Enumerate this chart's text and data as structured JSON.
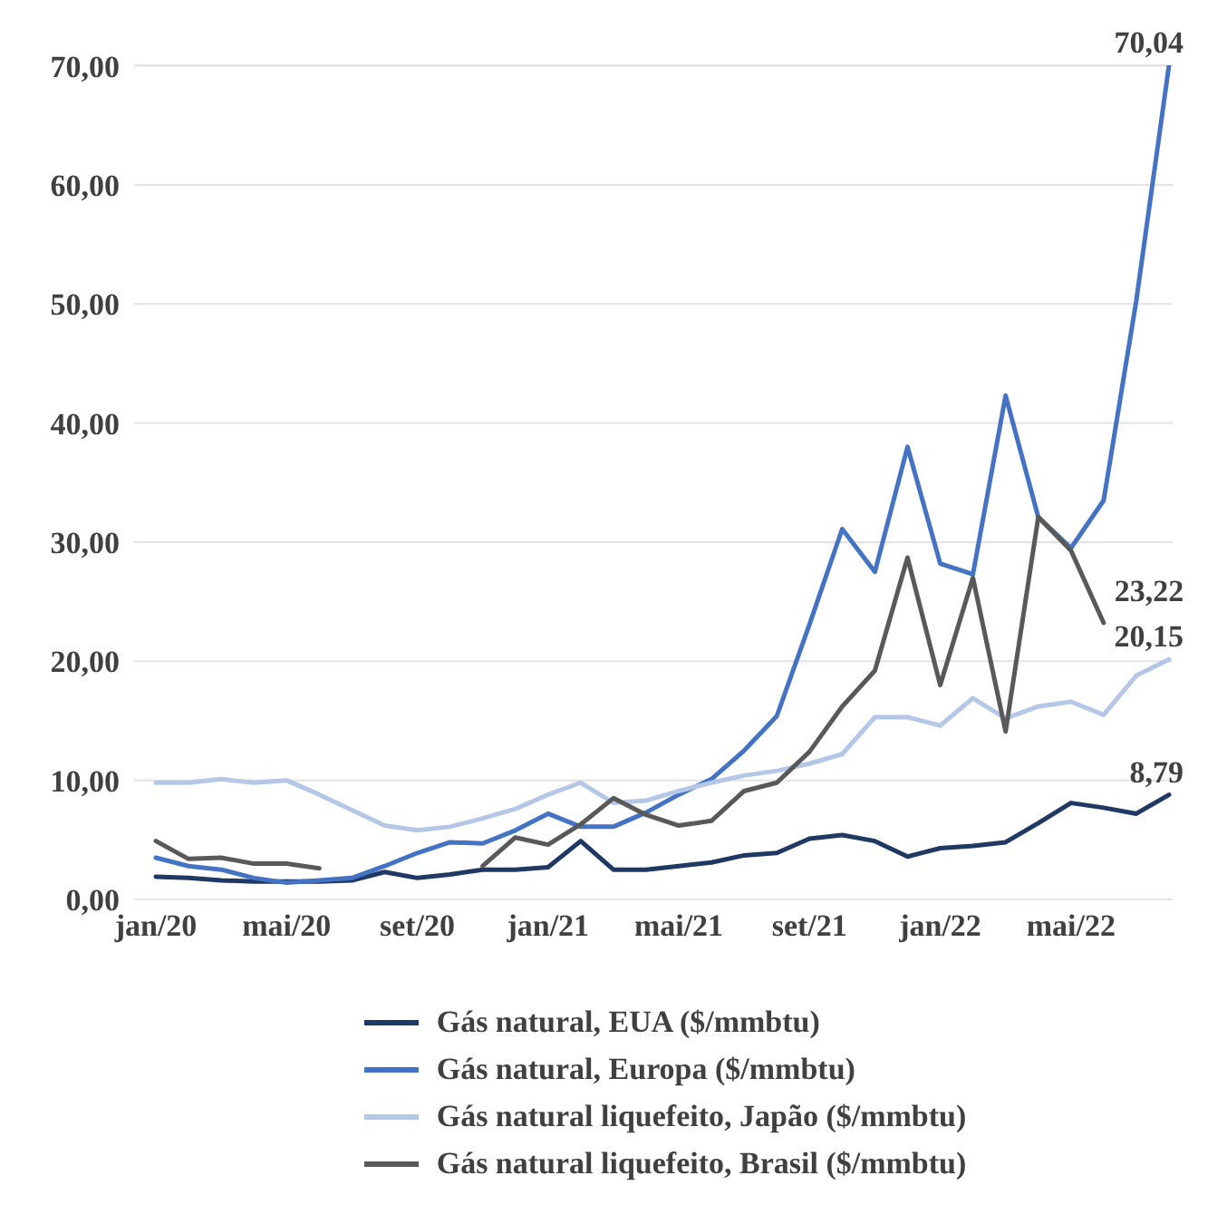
{
  "chart_data": {
    "type": "line",
    "categories": [
      "jan/20",
      null,
      null,
      null,
      "mai/20",
      null,
      null,
      null,
      "set/20",
      null,
      null,
      null,
      "jan/21",
      null,
      null,
      null,
      "mai/21",
      null,
      null,
      null,
      "set/21",
      null,
      null,
      null,
      "jan/22",
      null,
      null,
      null,
      "mai/22",
      null,
      null,
      null
    ],
    "series": [
      {
        "name": "Gás natural, EUA ($/mmbtu)",
        "color": "#203864",
        "values": [
          1.9,
          1.8,
          1.6,
          1.5,
          1.5,
          1.5,
          1.6,
          2.3,
          1.8,
          2.1,
          2.5,
          2.5,
          2.7,
          4.9,
          2.5,
          2.5,
          2.8,
          3.1,
          3.7,
          3.9,
          5.1,
          5.4,
          4.9,
          3.6,
          4.3,
          4.5,
          4.8,
          6.4,
          8.1,
          7.7,
          7.2,
          8.79
        ],
        "value_labels": [
          null,
          null,
          null,
          null,
          null,
          null,
          null,
          null,
          null,
          null,
          null,
          null,
          null,
          null,
          null,
          null,
          null,
          null,
          null,
          null,
          null,
          null,
          null,
          null,
          null,
          null,
          null,
          null,
          null,
          null,
          null,
          "8,79"
        ]
      },
      {
        "name": "Gás natural, Europa ($/mmbtu)",
        "color": "#4472c4",
        "values": [
          3.5,
          2.8,
          2.5,
          1.8,
          1.4,
          1.6,
          1.8,
          2.8,
          3.9,
          4.8,
          4.7,
          5.8,
          7.2,
          6.1,
          6.1,
          7.3,
          8.8,
          10.1,
          12.5,
          15.4,
          23.1,
          31.1,
          27.5,
          38.0,
          28.2,
          27.3,
          42.3,
          32.1,
          29.5,
          33.5,
          50.3,
          70.04
        ],
        "value_labels": [
          null,
          null,
          null,
          null,
          null,
          null,
          null,
          null,
          null,
          null,
          null,
          null,
          null,
          null,
          null,
          null,
          null,
          null,
          null,
          null,
          null,
          null,
          null,
          null,
          null,
          null,
          null,
          null,
          null,
          null,
          null,
          "70,04"
        ]
      },
      {
        "name": "Gás natural liquefeito, Japão ($/mmbtu)",
        "color": "#b4c7e7",
        "values": [
          9.8,
          9.8,
          10.1,
          9.8,
          10.0,
          8.8,
          7.5,
          6.2,
          5.8,
          6.1,
          6.8,
          7.6,
          8.8,
          9.8,
          8.1,
          8.3,
          9.1,
          9.8,
          10.4,
          10.8,
          11.4,
          12.2,
          15.3,
          15.3,
          14.6,
          16.9,
          15.2,
          16.2,
          16.6,
          15.5,
          18.8,
          20.15
        ],
        "value_labels": [
          null,
          null,
          null,
          null,
          null,
          null,
          null,
          null,
          null,
          null,
          null,
          null,
          null,
          null,
          null,
          null,
          null,
          null,
          null,
          null,
          null,
          null,
          null,
          null,
          null,
          null,
          null,
          null,
          null,
          null,
          null,
          "20,15"
        ]
      },
      {
        "name": "Gás natural liquefeito, Brasil ($/mmbtu)",
        "color": "#595959",
        "values": [
          4.9,
          3.4,
          3.5,
          3.0,
          3.0,
          2.6,
          null,
          null,
          null,
          null,
          2.8,
          5.2,
          4.6,
          6.3,
          8.5,
          7.1,
          6.2,
          6.6,
          9.1,
          9.8,
          12.4,
          16.2,
          19.2,
          28.7,
          18.0,
          27.0,
          14.1,
          32.1,
          29.3,
          23.22,
          null,
          null
        ],
        "value_labels": [
          null,
          null,
          null,
          null,
          null,
          null,
          null,
          null,
          null,
          null,
          null,
          null,
          null,
          null,
          null,
          null,
          null,
          null,
          null,
          null,
          null,
          null,
          null,
          null,
          null,
          null,
          null,
          null,
          null,
          "23,22",
          null,
          null
        ]
      }
    ],
    "ylim": [
      0,
      70.04
    ],
    "yticks": [
      {
        "value": 0,
        "label": "0,00"
      },
      {
        "value": 10,
        "label": "10,00"
      },
      {
        "value": 20,
        "label": "20,00"
      },
      {
        "value": 30,
        "label": "30,00"
      },
      {
        "value": 40,
        "label": "40,00"
      },
      {
        "value": 50,
        "label": "50,00"
      },
      {
        "value": 60,
        "label": "60,00"
      },
      {
        "value": 70,
        "label": "70,00"
      }
    ],
    "grid": "y",
    "legend": "bottom",
    "marker": "none",
    "line_style": "solid"
  }
}
